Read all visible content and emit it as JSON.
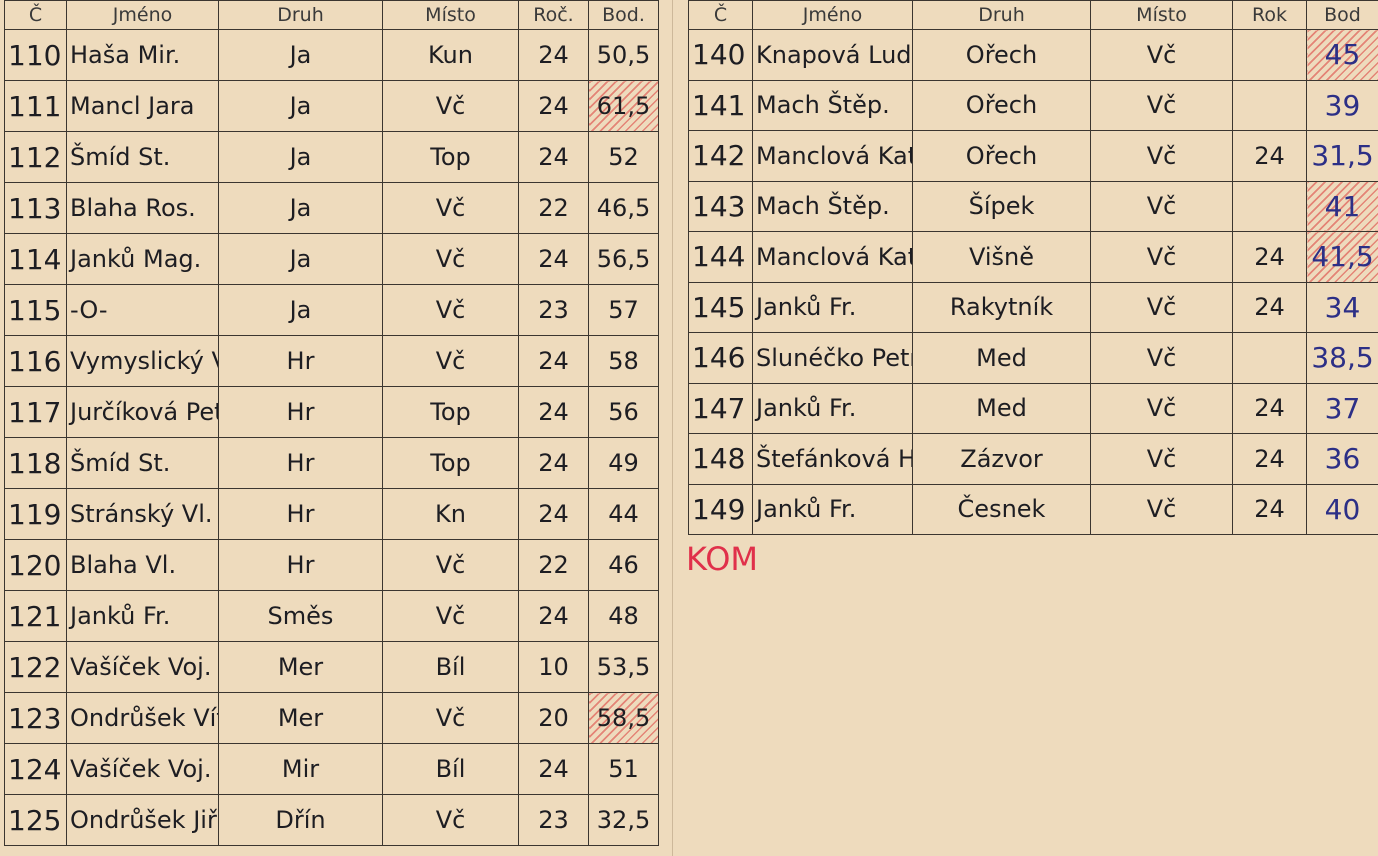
{
  "left_table": {
    "headers": [
      "Č",
      "Jméno",
      "Druh",
      "Místo",
      "Roč.",
      "Bod."
    ],
    "rows": [
      {
        "cells": [
          "110",
          "Haša Mir.",
          "Ja",
          "Kun",
          "24",
          "50,5"
        ]
      },
      {
        "cells": [
          "111",
          "Mancl Jara",
          "Ja",
          "Vč",
          "24",
          "61,5"
        ],
        "hatched": true
      },
      {
        "cells": [
          "112",
          "Šmíd St.",
          "Ja",
          "Top",
          "24",
          "52"
        ]
      },
      {
        "cells": [
          "113",
          "Blaha Ros.",
          "Ja",
          "Vč",
          "22",
          "46,5"
        ]
      },
      {
        "cells": [
          "114",
          "Janků Mag.",
          "Ja",
          "Vč",
          "24",
          "56,5"
        ]
      },
      {
        "cells": [
          "115",
          "-O-",
          "Ja",
          "Vč",
          "23",
          "57"
        ]
      },
      {
        "cells": [
          "116",
          "Vymyslický Vl.",
          "Hr",
          "Vč",
          "24",
          "58"
        ]
      },
      {
        "cells": [
          "117",
          "Jurčíková Petka",
          "Hr",
          "Top",
          "24",
          "56"
        ]
      },
      {
        "cells": [
          "118",
          "Šmíd St.",
          "Hr",
          "Top",
          "24",
          "49"
        ]
      },
      {
        "cells": [
          "119",
          "Stránský Vl.",
          "Hr",
          "Kn",
          "24",
          "44"
        ]
      },
      {
        "cells": [
          "120",
          "Blaha Vl.",
          "Hr",
          "Vč",
          "22",
          "46"
        ]
      },
      {
        "cells": [
          "121",
          "Janků Fr.",
          "Směs",
          "Vč",
          "24",
          "48"
        ]
      },
      {
        "cells": [
          "122",
          "Vašíček Voj.",
          "Mer",
          "Bíl",
          "10",
          "53,5"
        ]
      },
      {
        "cells": [
          "123",
          "Ondrůšek Vít.",
          "Mer",
          "Vč",
          "20",
          "58,5"
        ],
        "hatched": true
      },
      {
        "cells": [
          "124",
          "Vašíček Voj.",
          "Mir",
          "Bíl",
          "24",
          "51"
        ]
      },
      {
        "cells": [
          "125",
          "Ondrůšek Jiří",
          "Dřín",
          "Vč",
          "23",
          "32,5"
        ]
      }
    ]
  },
  "right_table": {
    "headers": [
      "Č",
      "Jméno",
      "Druh",
      "Místo",
      "Rok",
      "Bod"
    ],
    "rows": [
      {
        "cells": [
          "140",
          "Knapová Lud.",
          "Ořech",
          "Vč",
          null,
          "45"
        ],
        "hatched": true
      },
      {
        "cells": [
          "141",
          "Mach Štěp.",
          "Ořech",
          "Vč",
          null,
          "39"
        ]
      },
      {
        "cells": [
          "142",
          "Manclová Kat.",
          "Ořech",
          "Vč",
          "24",
          "31,5"
        ]
      },
      {
        "cells": [
          "143",
          "Mach Štěp.",
          "Šípek",
          "Vč",
          null,
          "41"
        ],
        "hatched": true
      },
      {
        "cells": [
          "144",
          "Manclová Kat.",
          "Višně",
          "Vč",
          "24",
          "41,5"
        ],
        "hatched": true
      },
      {
        "cells": [
          "145",
          "Janků Fr.",
          "Rakytník",
          "Vč",
          "24",
          "34"
        ]
      },
      {
        "cells": [
          "146",
          "Slunéčko Petr",
          "Med",
          "Vč",
          null,
          "38,5"
        ]
      },
      {
        "cells": [
          "147",
          "Janků Fr.",
          "Med",
          "Vč",
          "24",
          "37"
        ]
      },
      {
        "cells": [
          "148",
          "Štefánková H.",
          "Zázvor",
          "Vč",
          "24",
          "36"
        ]
      },
      {
        "cells": [
          "149",
          "Janků Fr.",
          "Česnek",
          "Vč",
          "24",
          "40"
        ]
      }
    ]
  },
  "annotation": "KOM"
}
